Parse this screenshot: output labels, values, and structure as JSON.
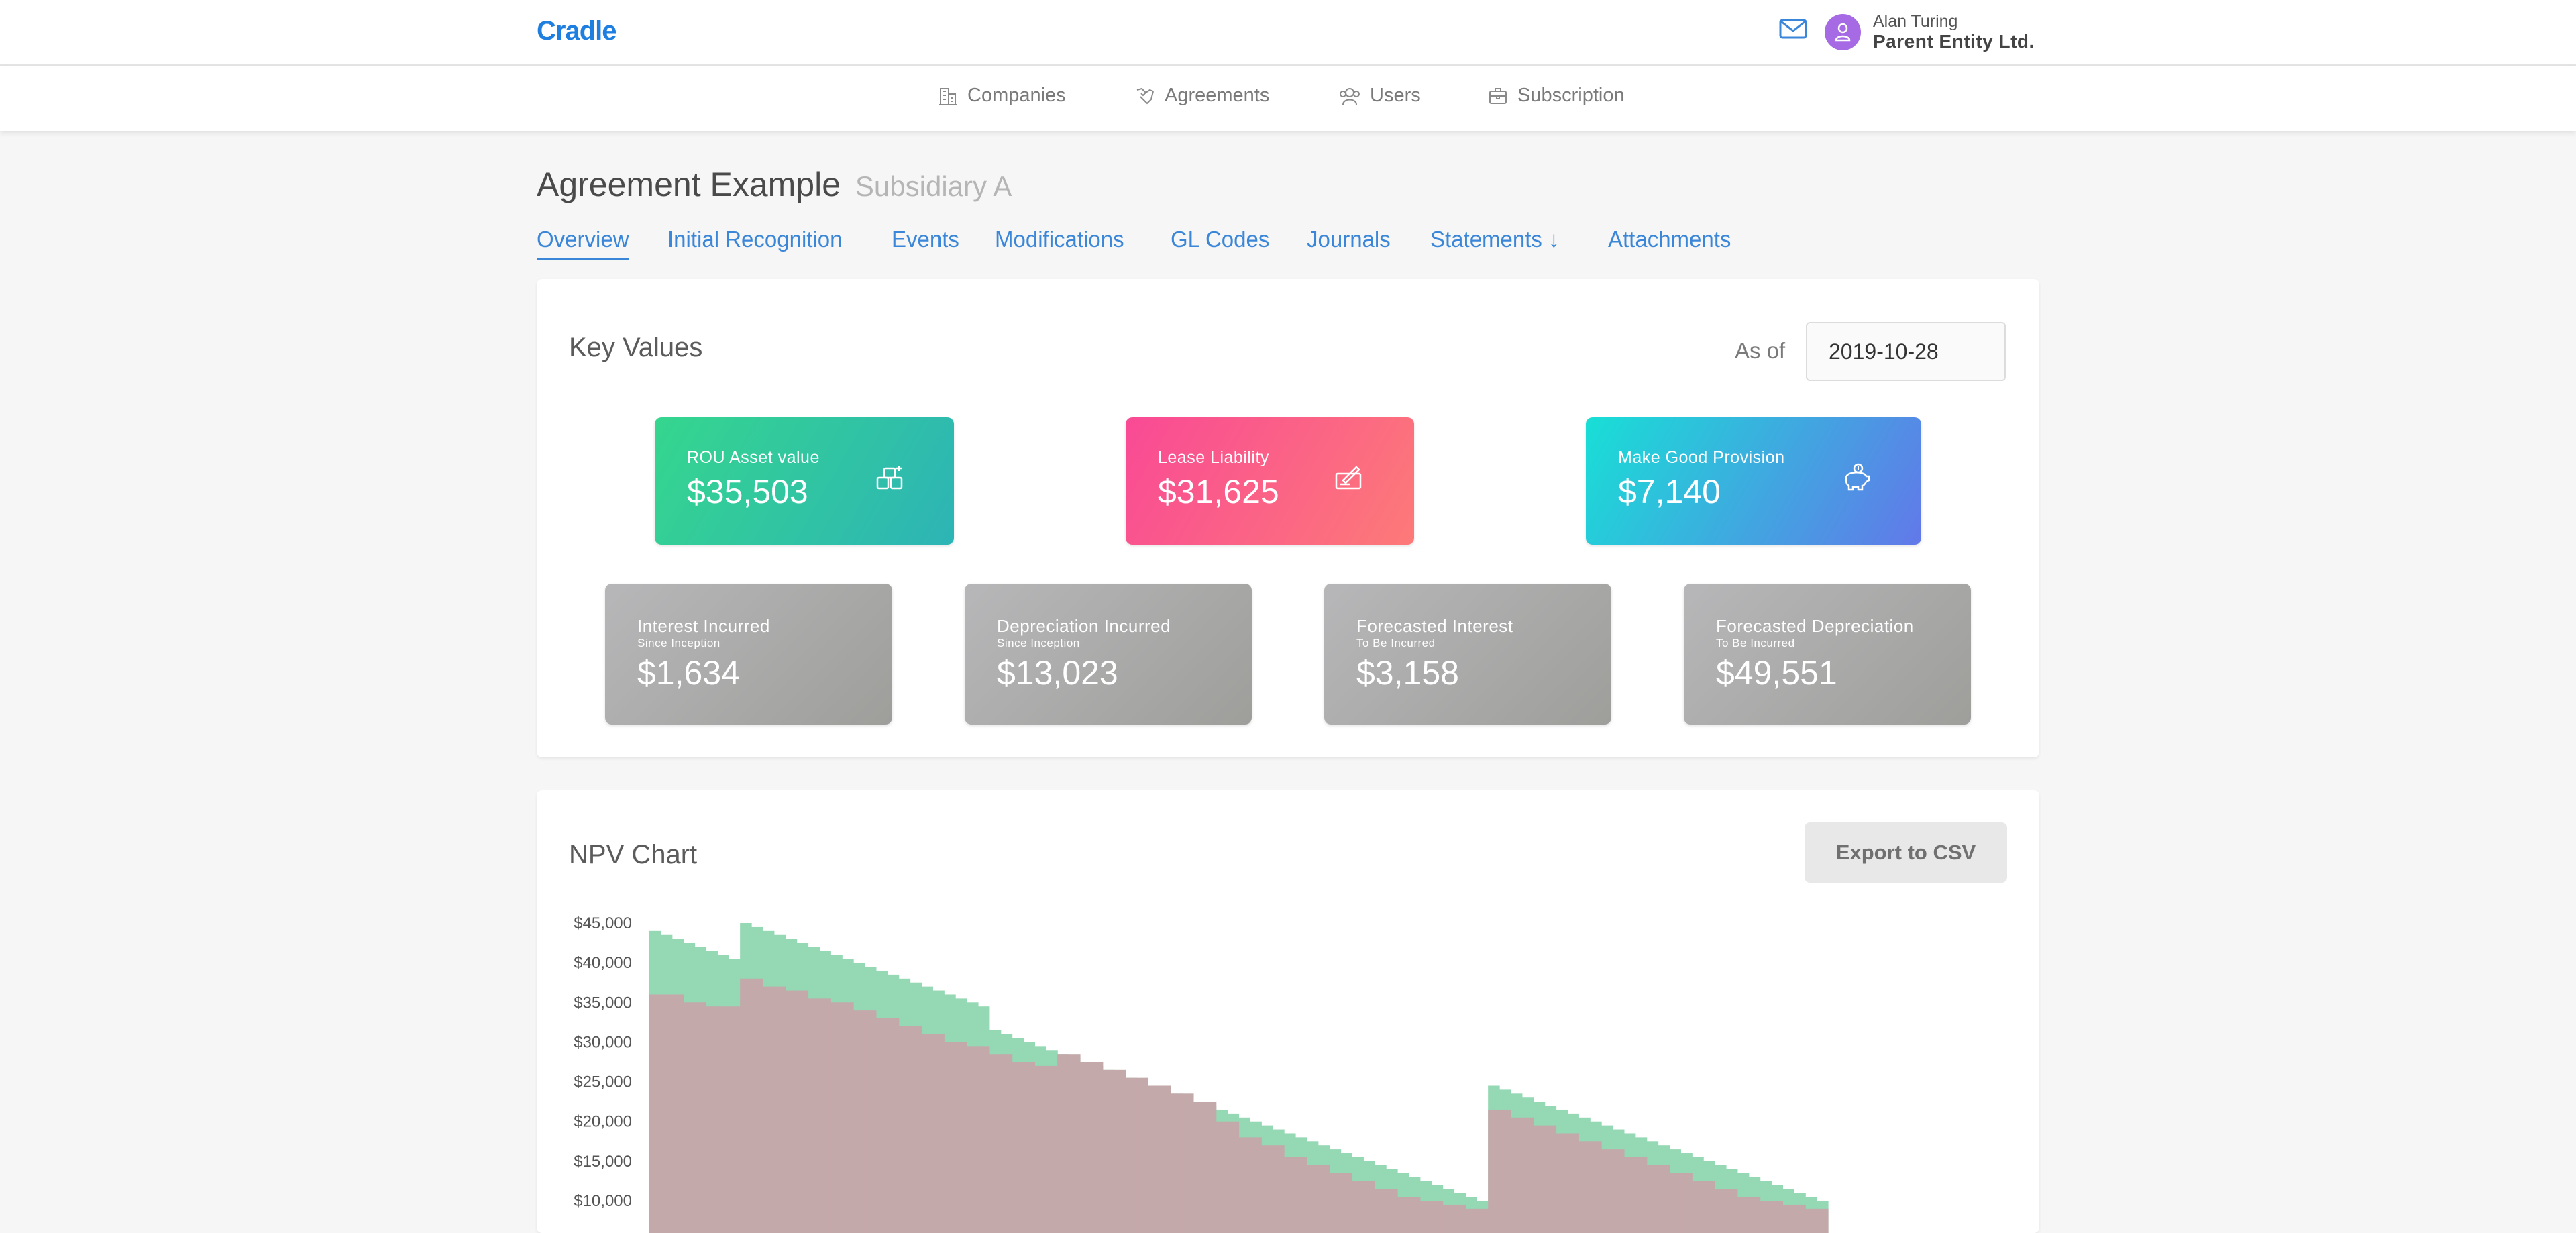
{
  "header": {
    "logo": "Cradle",
    "user_name": "Alan Turing",
    "user_org": "Parent Entity Ltd.",
    "icons": [
      "mail-icon",
      "user-icon"
    ]
  },
  "nav": [
    {
      "label": "Companies",
      "icon": "building-icon"
    },
    {
      "label": "Agreements",
      "icon": "handshake-icon"
    },
    {
      "label": "Users",
      "icon": "users-icon"
    },
    {
      "label": "Subscription",
      "icon": "briefcase-icon"
    }
  ],
  "page": {
    "title": "Agreement Example",
    "subtitle": "Subsidiary A"
  },
  "tabs": [
    {
      "label": "Overview",
      "active": true
    },
    {
      "label": "Initial Recognition"
    },
    {
      "label": "Events"
    },
    {
      "label": "Modifications"
    },
    {
      "label": "GL Codes"
    },
    {
      "label": "Journals"
    },
    {
      "label": "Statements ↓"
    },
    {
      "label": "Attachments"
    }
  ],
  "key_values": {
    "title": "Key Values",
    "as_of_label": "As of",
    "as_of_value": "2019-10-28",
    "primary": [
      {
        "label": "ROU Asset value",
        "value": "$35,503",
        "icon": "assets-icon",
        "color": "#35d68e"
      },
      {
        "label": "Lease Liability",
        "value": "$31,625",
        "icon": "cheque-icon",
        "color": "#f94a95"
      },
      {
        "label": "Make Good Provision",
        "value": "$7,140",
        "icon": "piggy-bank-icon",
        "color": "#18dfd6"
      }
    ],
    "secondary": [
      {
        "label": "Interest Incurred",
        "sub": "Since Inception",
        "value": "$1,634"
      },
      {
        "label": "Depreciation Incurred",
        "sub": "Since Inception",
        "value": "$13,023"
      },
      {
        "label": "Forecasted Interest",
        "sub": "To Be Incurred",
        "value": "$3,158"
      },
      {
        "label": "Forecasted Depreciation",
        "sub": "To Be Incurred",
        "value": "$49,551"
      }
    ]
  },
  "npv": {
    "title": "NPV Chart",
    "export_label": "Export to CSV"
  },
  "chart_data": {
    "type": "bar",
    "ylim": [
      10000,
      45000
    ],
    "yticks": [
      "$45,000",
      "$40,000",
      "$35,000",
      "$30,000",
      "$25,000",
      "$20,000",
      "$15,000",
      "$10,000"
    ],
    "grid": false,
    "colors": {
      "ROU asset": "#94d8b4",
      "liability": "#c4a9ab"
    },
    "series": [
      {
        "name": "",
        "values": [
          44000,
          43500,
          43000,
          42500,
          42000,
          41500,
          41000,
          40500,
          45000,
          44500,
          44000,
          43500,
          43000,
          42500,
          42000,
          41500,
          41000,
          40500,
          40000,
          39500,
          39000,
          38500,
          38000,
          37500,
          37000,
          36500,
          36000,
          35500,
          35000,
          34500,
          31500,
          31000,
          30500,
          30000,
          29500,
          29000,
          28500,
          28000,
          27500,
          27000,
          26500,
          26000,
          25500,
          25000,
          24500,
          24000,
          23500,
          23000,
          22500,
          22000,
          21500,
          21000,
          20500,
          20000,
          19500,
          19000,
          18500,
          18000,
          17500,
          17000,
          16500,
          16000,
          15500,
          15000,
          14500,
          14000,
          13500,
          13000,
          12500,
          12000,
          11500,
          11000,
          10500,
          10000,
          24500,
          24000,
          23500,
          23000,
          22500,
          22000,
          21500,
          21000,
          20500,
          20000,
          19500,
          19000,
          18500,
          18000,
          17500,
          17000,
          16500,
          16000,
          15500,
          15000,
          14500,
          14000,
          13500,
          13000,
          12500,
          12000,
          11500,
          11000,
          10500,
          10000
        ]
      },
      {
        "name": "",
        "values": [
          36000,
          36000,
          36000,
          35000,
          35000,
          34500,
          34500,
          34500,
          38000,
          38000,
          37000,
          37000,
          36500,
          36500,
          35500,
          35500,
          35000,
          35000,
          34000,
          34000,
          33000,
          33000,
          32000,
          32000,
          31000,
          31000,
          30000,
          30000,
          29500,
          29500,
          28500,
          28500,
          27500,
          27500,
          27000,
          27000,
          28500,
          28500,
          27500,
          27500,
          26500,
          26500,
          25500,
          25500,
          24500,
          24500,
          23500,
          23500,
          22500,
          22500,
          20000,
          20000,
          18000,
          18000,
          17000,
          17000,
          15500,
          15500,
          14500,
          14500,
          13500,
          13500,
          12500,
          12500,
          11500,
          11500,
          10500,
          10500,
          10000,
          10000,
          9500,
          9500,
          9000,
          9000,
          21500,
          21500,
          20500,
          20500,
          19500,
          19500,
          18500,
          18500,
          17500,
          17500,
          16500,
          16500,
          15500,
          15500,
          14500,
          14500,
          13500,
          13500,
          12500,
          12500,
          11500,
          11500,
          10500,
          10500,
          10000,
          10000,
          9500,
          9500,
          9000,
          9000
        ]
      }
    ]
  }
}
